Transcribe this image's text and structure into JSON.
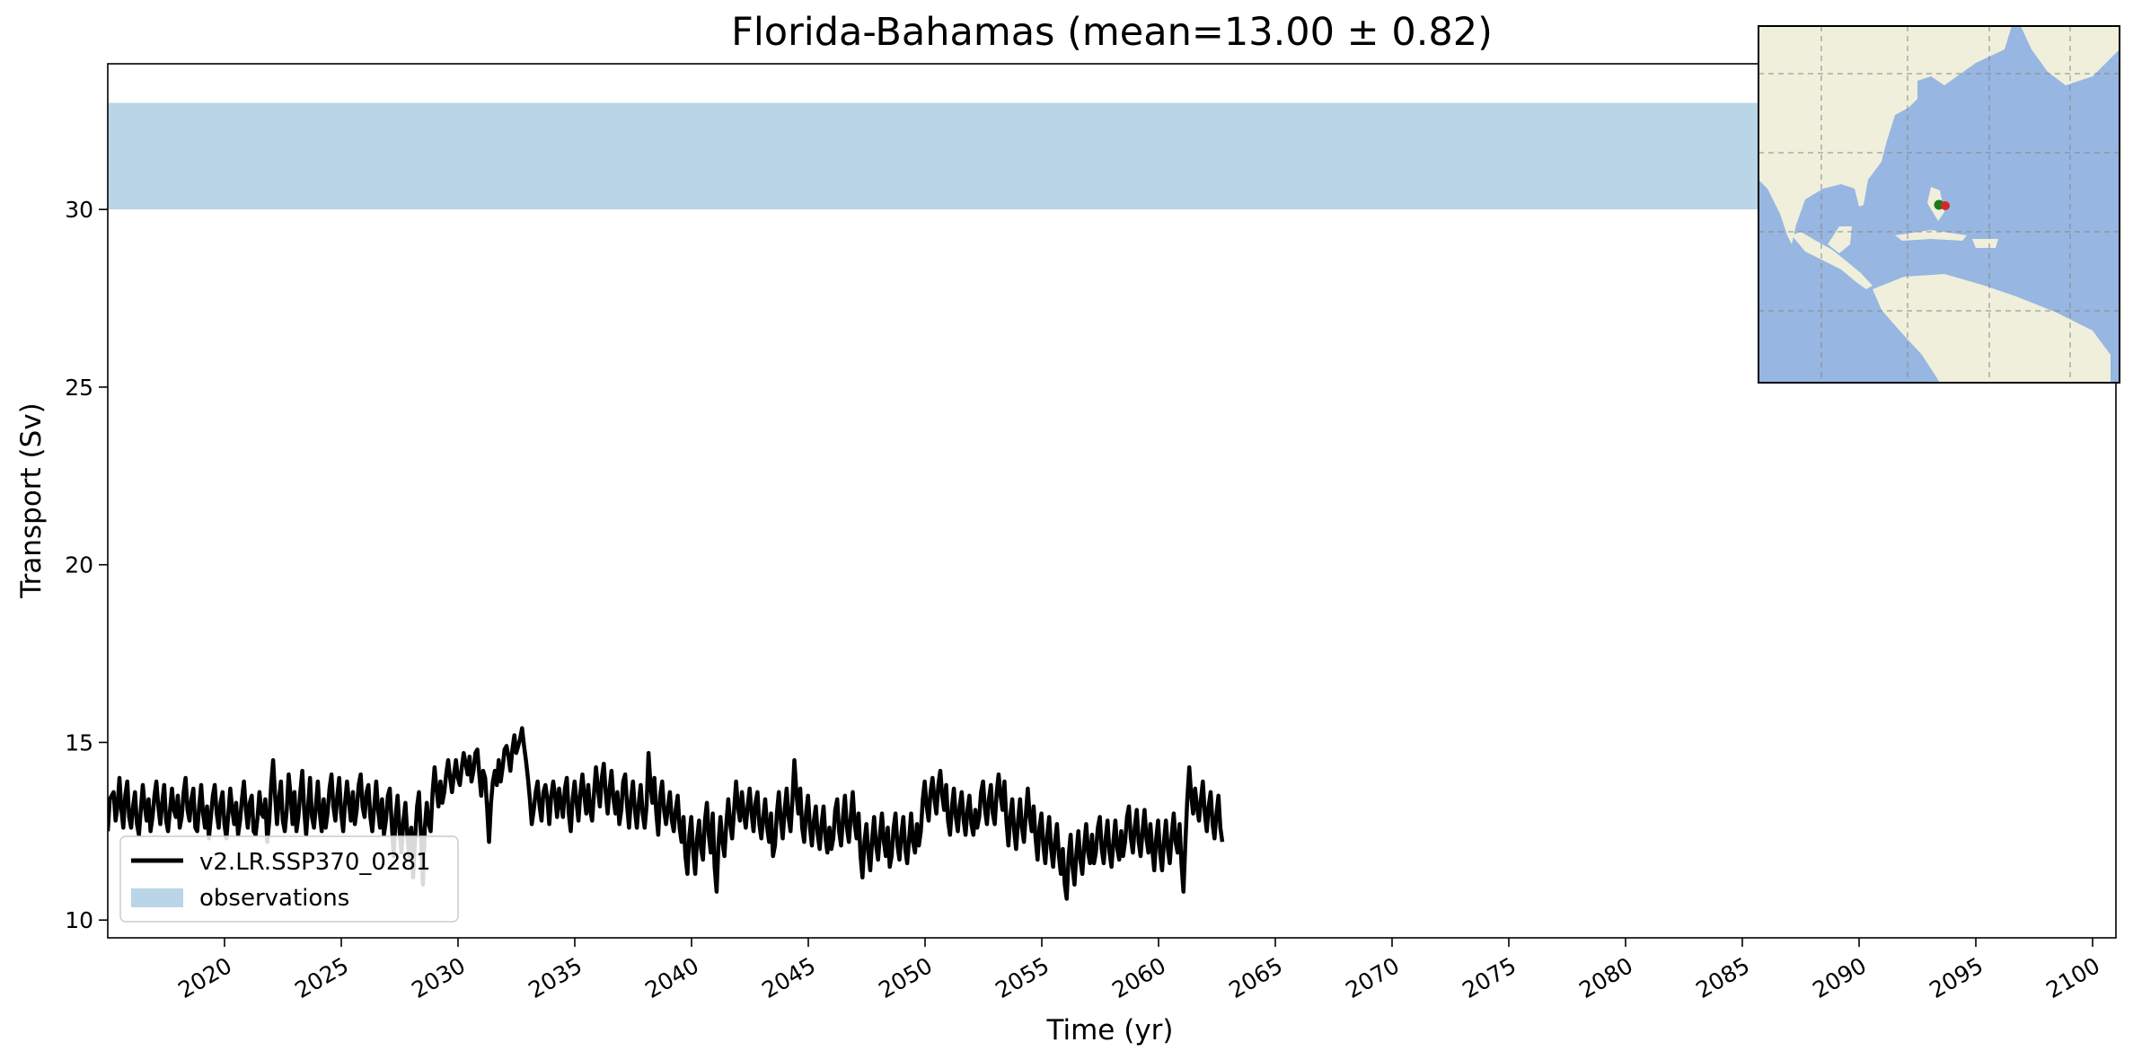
{
  "chart_data": {
    "type": "line",
    "title": "Florida-Bahamas (mean=13.00 ± 0.82)",
    "xlabel": "Time (yr)",
    "ylabel": "Transport (Sv)",
    "xlim": [
      2015.0,
      2101.0
    ],
    "ylim": [
      9.5,
      34.1
    ],
    "x_ticks": [
      "2020",
      "2025",
      "2030",
      "2035",
      "2040",
      "2045",
      "2050",
      "2055",
      "2060",
      "2065",
      "2070",
      "2075",
      "2080",
      "2085",
      "2090",
      "2095",
      "2100"
    ],
    "y_ticks": [
      "10",
      "15",
      "20",
      "25",
      "30"
    ],
    "grid": false,
    "legend_position": "lower-left",
    "observations": {
      "name": "observations",
      "y_low": 30.0,
      "y_high": 33.0,
      "color": "#b9d5e7"
    },
    "series": [
      {
        "name": "v2.LR.SSP370_0281",
        "color": "#000000",
        "x_start": 2015.0,
        "x_step": 0.0833,
        "values": [
          12.5,
          13.4,
          13.5,
          13.6,
          12.8,
          13.2,
          14.0,
          13.1,
          12.6,
          13.5,
          13.9,
          12.9,
          12.6,
          13.2,
          13.6,
          12.7,
          12.4,
          13.1,
          13.8,
          13.2,
          12.8,
          13.4,
          12.5,
          12.9,
          13.5,
          13.9,
          13.2,
          12.7,
          13.3,
          13.8,
          12.8,
          12.5,
          13.1,
          13.7,
          13.1,
          12.9,
          13.5,
          12.6,
          12.9,
          13.6,
          14.0,
          13.1,
          12.8,
          13.4,
          13.7,
          12.6,
          12.5,
          13.2,
          13.8,
          13.0,
          12.6,
          13.2,
          12.3,
          12.9,
          13.5,
          13.8,
          13.0,
          12.6,
          13.3,
          13.6,
          12.7,
          12.3,
          13.0,
          13.7,
          13.1,
          12.7,
          13.3,
          12.4,
          12.8,
          13.4,
          13.9,
          13.1,
          12.6,
          13.3,
          13.5,
          12.5,
          12.4,
          12.9,
          13.6,
          13.0,
          12.9,
          13.4,
          12.2,
          12.8,
          13.8,
          14.5,
          13.5,
          12.7,
          13.4,
          13.9,
          12.8,
          12.5,
          13.1,
          14.1,
          13.5,
          12.7,
          13.6,
          12.5,
          12.9,
          13.6,
          14.2,
          13.1,
          12.4,
          13.2,
          14.0,
          12.9,
          12.6,
          13.2,
          13.9,
          13.0,
          12.5,
          13.4,
          12.6,
          13.0,
          13.7,
          14.1,
          13.2,
          12.8,
          13.5,
          14.0,
          13.0,
          12.5,
          13.3,
          13.9,
          13.3,
          12.8,
          13.6,
          12.7,
          13.1,
          13.8,
          14.1,
          13.2,
          12.9,
          13.6,
          13.8,
          12.9,
          12.5,
          13.2,
          13.9,
          13.1,
          12.6,
          13.4,
          12.4,
          12.8,
          13.5,
          13.7,
          12.7,
          11.8,
          12.9,
          13.5,
          12.5,
          11.9,
          12.8,
          13.3,
          12.4,
          11.8,
          12.6,
          11.2,
          12.3,
          13.2,
          13.6,
          12.4,
          11.0,
          12.6,
          13.3,
          12.7,
          12.5,
          13.6,
          14.3,
          13.7,
          13.2,
          13.9,
          13.3,
          13.6,
          14.1,
          14.5,
          14.0,
          13.6,
          14.1,
          14.5,
          14.0,
          13.8,
          14.3,
          14.7,
          14.4,
          14.1,
          14.6,
          13.9,
          14.2,
          14.7,
          14.8,
          14.1,
          13.5,
          14.2,
          14.0,
          13.2,
          12.2,
          13.3,
          13.9,
          14.2,
          13.8,
          14.5,
          13.9,
          14.3,
          14.8,
          14.9,
          14.6,
          14.2,
          14.8,
          15.2,
          14.7,
          14.9,
          15.1,
          15.4,
          14.9,
          14.5,
          14.0,
          13.4,
          12.7,
          13.1,
          13.6,
          13.9,
          13.2,
          12.8,
          13.6,
          13.8,
          13.4,
          12.7,
          13.5,
          13.9,
          13.5,
          12.9,
          13.7,
          13.3,
          12.9,
          13.7,
          14.0,
          13.0,
          12.5,
          13.4,
          13.9,
          13.3,
          12.8,
          13.6,
          14.1,
          13.5,
          13.0,
          13.8,
          13.1,
          12.8,
          13.6,
          14.3,
          13.7,
          13.2,
          14.0,
          14.4,
          13.6,
          13.0,
          13.7,
          14.2,
          13.4,
          13.0,
          13.6,
          12.7,
          13.1,
          13.9,
          14.1,
          13.2,
          12.6,
          13.4,
          13.9,
          13.1,
          12.6,
          13.3,
          13.8,
          13.0,
          12.6,
          13.2,
          14.7,
          13.8,
          13.3,
          14.0,
          13.0,
          12.4,
          13.5,
          13.9,
          13.1,
          12.7,
          13.2,
          13.6,
          12.8,
          12.5,
          13.1,
          13.5,
          12.6,
          12.2,
          12.9,
          11.8,
          11.3,
          12.4,
          12.9,
          11.9,
          11.3,
          12.3,
          12.8,
          12.0,
          11.7,
          12.8,
          13.3,
          12.4,
          11.9,
          13.0,
          11.5,
          10.8,
          12.2,
          12.9,
          12.2,
          11.8,
          12.7,
          13.4,
          12.7,
          12.3,
          13.1,
          13.9,
          13.2,
          12.8,
          13.6,
          13.0,
          12.6,
          13.2,
          13.7,
          13.0,
          12.5,
          13.3,
          13.6,
          12.7,
          12.3,
          12.9,
          13.4,
          12.6,
          12.2,
          13.0,
          11.8,
          12.1,
          13.0,
          13.6,
          12.8,
          12.3,
          13.1,
          13.7,
          12.9,
          12.5,
          13.4,
          14.5,
          13.6,
          13.0,
          13.7,
          12.6,
          12.2,
          13.0,
          13.5,
          12.6,
          12.1,
          12.8,
          13.2,
          12.4,
          12.0,
          12.7,
          13.2,
          12.3,
          11.9,
          12.6,
          12.0,
          12.3,
          13.1,
          13.4,
          12.5,
          12.1,
          12.9,
          13.5,
          12.6,
          12.2,
          12.9,
          13.6,
          12.7,
          12.3,
          13.0,
          11.8,
          11.2,
          12.2,
          12.7,
          11.9,
          11.4,
          12.3,
          12.9,
          12.1,
          11.7,
          12.4,
          13.0,
          12.2,
          11.8,
          12.6,
          11.5,
          11.8,
          12.6,
          13.0,
          12.1,
          11.7,
          12.4,
          12.9,
          12.0,
          11.6,
          12.3,
          13.0,
          12.2,
          11.9,
          12.7,
          12.1,
          12.5,
          13.4,
          13.9,
          13.2,
          12.8,
          13.6,
          14.0,
          13.4,
          13.0,
          13.8,
          14.2,
          13.5,
          13.1,
          13.8,
          12.8,
          12.4,
          13.2,
          13.7,
          12.9,
          12.5,
          13.2,
          13.6,
          12.8,
          12.4,
          13.1,
          13.5,
          12.7,
          12.4,
          13.1,
          12.6,
          12.9,
          13.6,
          13.9,
          13.1,
          12.7,
          13.4,
          13.8,
          13.0,
          12.7,
          13.6,
          14.1,
          13.5,
          13.1,
          13.9,
          12.8,
          12.1,
          12.9,
          13.4,
          12.5,
          12.0,
          12.8,
          13.4,
          12.6,
          12.2,
          13.0,
          13.7,
          12.9,
          12.5,
          13.2,
          12.3,
          11.7,
          12.6,
          13.0,
          12.1,
          11.6,
          12.4,
          12.9,
          12.0,
          11.5,
          12.2,
          12.7,
          11.8,
          11.3,
          12.0,
          11.0,
          10.6,
          11.8,
          12.4,
          11.5,
          11.0,
          11.9,
          12.5,
          11.7,
          11.3,
          12.1,
          12.7,
          11.9,
          11.6,
          12.4,
          11.6,
          11.9,
          12.6,
          12.9,
          12.0,
          11.6,
          12.3,
          12.8,
          11.9,
          11.5,
          12.2,
          12.8,
          12.0,
          11.7,
          12.5,
          11.8,
          12.2,
          12.9,
          13.2,
          12.3,
          11.9,
          12.6,
          13.1,
          12.2,
          11.8,
          12.5,
          13.1,
          12.3,
          11.9,
          12.7,
          12.0,
          11.4,
          12.3,
          12.8,
          11.9,
          11.4,
          12.2,
          12.8,
          12.0,
          11.6,
          12.4,
          13.0,
          12.2,
          11.9,
          12.7,
          11.6,
          10.8,
          12.2,
          13.4,
          14.3,
          13.5,
          13.0,
          13.7,
          13.2,
          12.8,
          13.4,
          13.9,
          13.0,
          12.5,
          13.2,
          13.6,
          12.7,
          12.3,
          13.0,
          13.5,
          12.6,
          12.2
        ]
      }
    ],
    "inset_map": {
      "land_color": "#efefdb",
      "ocean_color": "#97b6e1",
      "markers": [
        {
          "color": "#1a7a1a"
        },
        {
          "color": "#d62728"
        }
      ]
    }
  }
}
